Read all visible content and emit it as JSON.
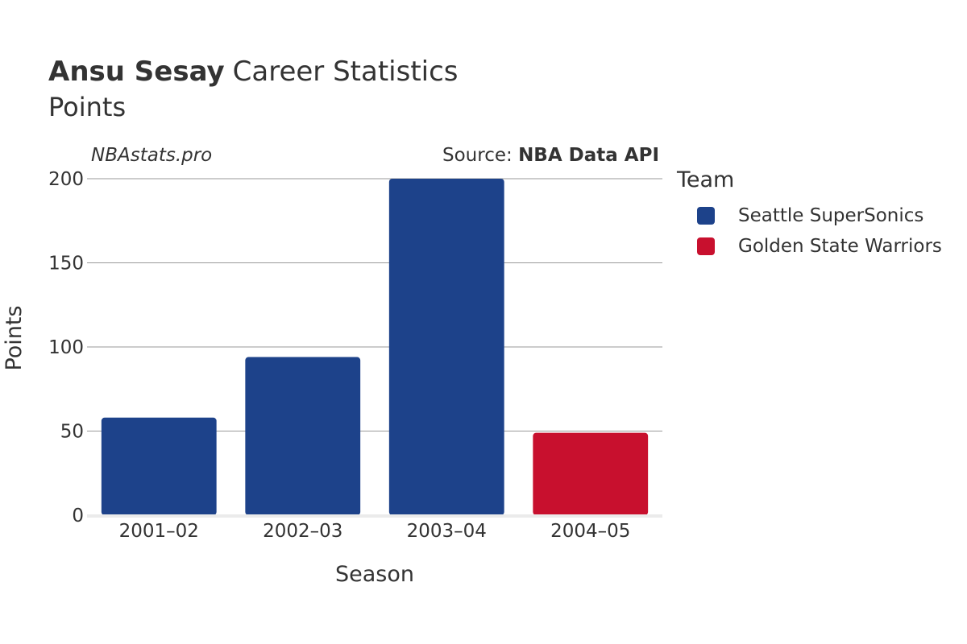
{
  "title": {
    "player": "Ansu Sesay",
    "suffix": "Career Statistics",
    "subtitle": "Points"
  },
  "watermark": "NBAstats.pro",
  "source": {
    "prefix": "Source: ",
    "name": "NBA Data API"
  },
  "legend": {
    "title": "Team",
    "items": [
      {
        "label": "Seattle SuperSonics",
        "color": "#1D428A"
      },
      {
        "label": "Golden State Warriors",
        "color": "#C8102E"
      }
    ]
  },
  "chart_data": {
    "type": "bar",
    "title": "Ansu Sesay Career Statistics",
    "subtitle": "Points",
    "xlabel": "Season",
    "ylabel": "Points",
    "categories": [
      "2001–02",
      "2002–03",
      "2003–04",
      "2004–05"
    ],
    "values": [
      58,
      94,
      200,
      49
    ],
    "teams": [
      "Seattle SuperSonics",
      "Seattle SuperSonics",
      "Seattle SuperSonics",
      "Golden State Warriors"
    ],
    "colors": [
      "#1D428A",
      "#1D428A",
      "#1D428A",
      "#C8102E"
    ],
    "ylim": [
      0,
      200
    ],
    "yticks": [
      0,
      50,
      100,
      150,
      200
    ],
    "grid": true,
    "legend_position": "right"
  }
}
